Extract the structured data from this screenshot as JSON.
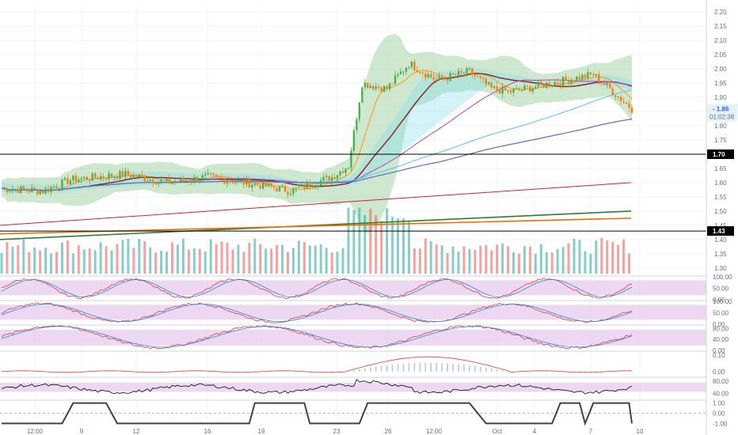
{
  "chart_data": {
    "type": "candlestick",
    "colors": {
      "up": "#26a69a",
      "down": "#ef5350",
      "candle_up": "#4caf50",
      "candle_down": "#f57f17",
      "bollinger_fill": "#a5d6a7",
      "cloud_fill": "#80deea",
      "rsi_band": "#e1bee7",
      "ma_fast": "#ff9800",
      "ma_mid": "#ab47bc",
      "ma_slow": "#5c6bc0",
      "ma_long": "#2e7d32"
    },
    "main": {
      "ylim": [
        1.28,
        2.22
      ],
      "y_ticks": [
        "2.20",
        "2.15",
        "2.10",
        "2.05",
        "2.00",
        "1.95",
        "1.90",
        "1.85",
        "1.80",
        "1.75",
        "1.70",
        "1.65",
        "1.60",
        "1.55",
        "1.50",
        "1.45",
        "1.40",
        "1.35",
        "1.30"
      ],
      "price_tags": [
        {
          "label": "1.86",
          "value": 1.86,
          "color": "#ef5350"
        },
        {
          "label": "1.70",
          "value": 1.7,
          "color": "#000000"
        },
        {
          "label": "1.43",
          "value": 1.43,
          "color": "#000000"
        }
      ],
      "countdown": "01:02:38",
      "horizontal_lines": [
        1.7,
        1.43
      ]
    },
    "x_axis": {
      "labels": [
        "12:00",
        "9",
        "12",
        "16",
        "19",
        "23",
        "26",
        "12:00",
        "Oct",
        "4",
        "7",
        "10"
      ],
      "positions": [
        44,
        103,
        172,
        262,
        330,
        425,
        490,
        548,
        628,
        675,
        746,
        808
      ]
    },
    "subpanels": [
      {
        "name": "stoch1",
        "ticks": [
          "100.00",
          "50.00",
          "0.00"
        ],
        "ylim": [
          0,
          100
        ]
      },
      {
        "name": "stoch2",
        "ticks": [
          "100.00",
          "50.00",
          "0.00"
        ],
        "ylim": [
          0,
          100
        ]
      },
      {
        "name": "stoch3",
        "ticks": [
          "80.00",
          "40.00",
          "0.00"
        ],
        "ylim": [
          0,
          90
        ]
      },
      {
        "name": "macd",
        "ticks": [
          "0.10",
          "0.00"
        ],
        "ylim": [
          -0.03,
          0.12
        ]
      },
      {
        "name": "rsi",
        "ticks": [
          "80.00",
          "40.00"
        ],
        "ylim": [
          20,
          90
        ]
      },
      {
        "name": "signal",
        "ticks": [
          "1.00",
          "0.00",
          "-1.00"
        ],
        "ylim": [
          -1.2,
          1.2
        ]
      }
    ]
  }
}
